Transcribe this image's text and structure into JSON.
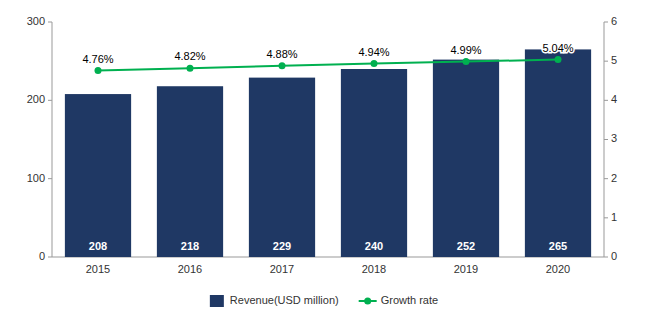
{
  "chart_data": {
    "type": "bar",
    "categories": [
      "2015",
      "2016",
      "2017",
      "2018",
      "2019",
      "2020"
    ],
    "series": [
      {
        "name": "Revenue(USD million)",
        "type": "bar",
        "color": "#1F3864",
        "values": [
          208,
          218,
          229,
          240,
          252,
          265
        ]
      },
      {
        "name": "Growth rate",
        "type": "line",
        "color": "#00B050",
        "marker": "circle",
        "axis": "y2",
        "values": [
          4.76,
          4.82,
          4.88,
          4.94,
          4.99,
          5.04
        ],
        "value_labels": [
          "4.76%",
          "4.82%",
          "4.88%",
          "4.94%",
          "4.99%",
          "5.04%"
        ]
      }
    ],
    "ylim": [
      0,
      300
    ],
    "yticks": [
      0,
      100,
      200,
      300
    ],
    "y2lim": [
      0,
      6
    ],
    "y2ticks": [
      0,
      1,
      2,
      3,
      4,
      5,
      6
    ],
    "grid": false,
    "data_labels": true,
    "legend": "bottom"
  }
}
